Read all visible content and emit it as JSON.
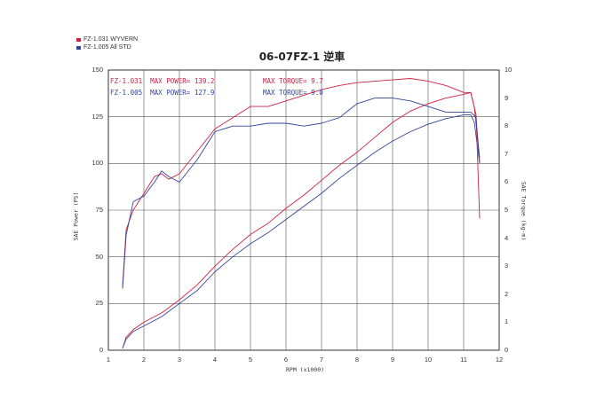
{
  "chart_data": {
    "type": "line",
    "title": "06-07FZ-1 逆車",
    "xlabel": "RPM (x1000)",
    "ylabel_left": "SAE Power (PS)",
    "ylabel_right": "SAE Torque (kg-m)",
    "xlim": [
      1,
      12
    ],
    "ylim_left": [
      0,
      150
    ],
    "ylim_right": [
      0,
      10
    ],
    "x_ticks": [
      "1",
      "2",
      "3",
      "4",
      "5",
      "6",
      "7",
      "8",
      "9",
      "10",
      "11",
      "12"
    ],
    "y_ticks_left": [
      "0",
      "25",
      "50",
      "75",
      "100",
      "125",
      "150"
    ],
    "y_ticks_right": [
      "0",
      "1",
      "2",
      "3",
      "4",
      "5",
      "6",
      "7",
      "8",
      "9",
      "10"
    ],
    "grid": true,
    "legend_placement": "top-left",
    "legend": [
      {
        "label": "FZ-1.031  WYVERN",
        "color": "#cc2244"
      },
      {
        "label": "FZ-1.005  All STD",
        "color": "#334499"
      }
    ],
    "annotations": [
      {
        "text": "FZ-1.031  MAX POWER= 139.2",
        "color": "#cc2244"
      },
      {
        "text": "FZ-1.005  MAX POWER= 127.9",
        "color": "#334499"
      },
      {
        "text": "MAX TORQUE= 9.7",
        "color": "#cc2244"
      },
      {
        "text": "MAX TORQUE= 9.0",
        "color": "#334499"
      }
    ],
    "series": [
      {
        "name": "FZ-1.031  WYVERN",
        "color": "#cc2244",
        "axis": "left",
        "x": [
          1.4,
          1.5,
          1.7,
          2.0,
          2.5,
          3.0,
          3.5,
          4.0,
          4.5,
          5.0,
          5.5,
          6.0,
          6.5,
          7.0,
          7.5,
          8.0,
          8.5,
          9.0,
          9.5,
          10.0,
          10.5,
          11.0,
          11.2,
          11.3,
          11.45
        ],
        "y": [
          1,
          7,
          11,
          15,
          20,
          27,
          35,
          45,
          54,
          62,
          68,
          76,
          83,
          91,
          99,
          106,
          114,
          122,
          128,
          132,
          135,
          137,
          138,
          130,
          103
        ]
      },
      {
        "name": "FZ-1.005  All STD",
        "color": "#334499",
        "axis": "left",
        "x": [
          1.4,
          1.5,
          1.7,
          2.0,
          2.5,
          3.0,
          3.5,
          4.0,
          4.5,
          5.0,
          5.5,
          6.0,
          6.5,
          7.0,
          7.5,
          8.0,
          8.5,
          9.0,
          9.5,
          10.0,
          10.5,
          11.0,
          11.2,
          11.3,
          11.45
        ],
        "y": [
          1,
          6,
          10,
          13,
          18,
          25,
          32,
          42,
          50,
          57,
          63,
          70,
          77,
          84,
          92,
          99,
          106,
          112,
          117,
          121,
          124,
          126,
          126,
          122,
          100
        ]
      },
      {
        "name": "FZ-1.031  WYVERN",
        "color": "#cc2244",
        "axis": "right",
        "x": [
          1.4,
          1.5,
          1.7,
          2.0,
          2.3,
          2.5,
          2.7,
          3.0,
          3.5,
          4.0,
          4.5,
          5.0,
          5.5,
          6.0,
          6.5,
          7.0,
          7.5,
          8.0,
          8.5,
          9.0,
          9.5,
          10.0,
          10.5,
          11.0,
          11.2,
          11.35,
          11.45
        ],
        "y": [
          2.3,
          4.3,
          5.0,
          5.6,
          6.2,
          6.3,
          6.1,
          6.3,
          7.1,
          7.9,
          8.3,
          8.7,
          8.7,
          8.9,
          9.1,
          9.3,
          9.45,
          9.55,
          9.6,
          9.65,
          9.7,
          9.6,
          9.45,
          9.2,
          9.2,
          8.4,
          4.7
        ]
      },
      {
        "name": "FZ-1.005  All STD",
        "color": "#334499",
        "axis": "right",
        "x": [
          1.4,
          1.5,
          1.7,
          2.0,
          2.3,
          2.5,
          2.7,
          3.0,
          3.5,
          4.0,
          4.5,
          5.0,
          5.5,
          6.0,
          6.5,
          7.0,
          7.5,
          8.0,
          8.5,
          9.0,
          9.5,
          10.0,
          10.5,
          11.0,
          11.2,
          11.35,
          11.45
        ],
        "y": [
          2.2,
          4.1,
          5.3,
          5.5,
          6.0,
          6.4,
          6.2,
          6.0,
          6.8,
          7.8,
          8.0,
          8.0,
          8.1,
          8.1,
          8.0,
          8.1,
          8.3,
          8.8,
          9.0,
          9.0,
          8.9,
          8.7,
          8.5,
          8.5,
          8.5,
          8.3,
          6.7
        ]
      }
    ]
  }
}
